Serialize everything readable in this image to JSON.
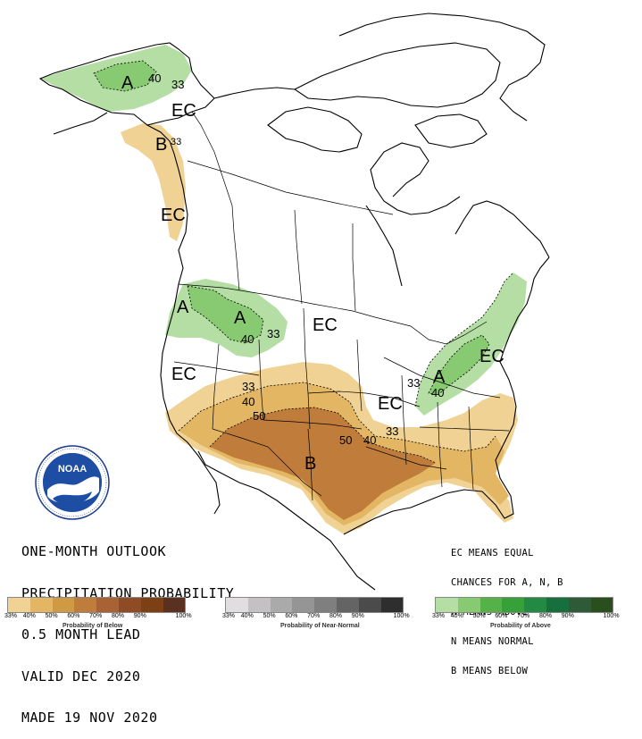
{
  "title_lines": [
    "ONE-MONTH OUTLOOK",
    "PRECIPITATION PROBABILITY",
    "0.5 MONTH LEAD",
    "VALID DEC 2020",
    "MADE 19 NOV 2020"
  ],
  "legend_notes": [
    "EC MEANS EQUAL",
    "CHANCES FOR A, N, B",
    "A MEANS ABOVE",
    "N MEANS NORMAL",
    "B MEANS BELOW"
  ],
  "logo_text": "NOAA",
  "map_labels": {
    "a1": "A",
    "a2": "A",
    "a3": "A",
    "a4": "A",
    "b1": "B",
    "b2": "B",
    "ec1": "EC",
    "ec2": "EC",
    "ec3": "EC",
    "ec4": "EC",
    "ec5": "EC",
    "ec6": "EC",
    "c40_ak": "40",
    "c33_ak": "33",
    "c33_bc": "33",
    "c40_nw": "40",
    "c33_nw": "33",
    "c33_se": "33",
    "c40_se": "40",
    "c33_sw": "33",
    "c40_sw": "40",
    "c50_sw": "50",
    "c50_tx": "50",
    "c40_tx": "40",
    "c33_tx": "33"
  },
  "scales": [
    {
      "label": "Probability of Below",
      "colors": [
        "#f0d294",
        "#e3b664",
        "#d09a45",
        "#c07c3a",
        "#a86233",
        "#8f4b26",
        "#7d3f14",
        "#5a3120"
      ],
      "ticks": [
        "33%",
        "40%",
        "50%",
        "60%",
        "70%",
        "80%",
        "90%",
        "100%"
      ]
    },
    {
      "label": "Probability of Near-Normal",
      "colors": [
        "#e1dde0",
        "#c4c0c3",
        "#aaaaaa",
        "#959595",
        "#7f7f7f",
        "#646464",
        "#4b4b4b",
        "#2e2e2e"
      ],
      "ticks": [
        "33%",
        "40%",
        "50%",
        "60%",
        "70%",
        "80%",
        "90%",
        "100%"
      ]
    },
    {
      "label": "Probability of Above",
      "colors": [
        "#b4dea4",
        "#87ca72",
        "#55b249",
        "#36a039",
        "#238a44",
        "#16703b",
        "#2e5a38",
        "#29501c"
      ],
      "ticks": [
        "33%",
        "40%",
        "50%",
        "60%",
        "70%",
        "80%",
        "90%",
        "100%"
      ]
    }
  ]
}
